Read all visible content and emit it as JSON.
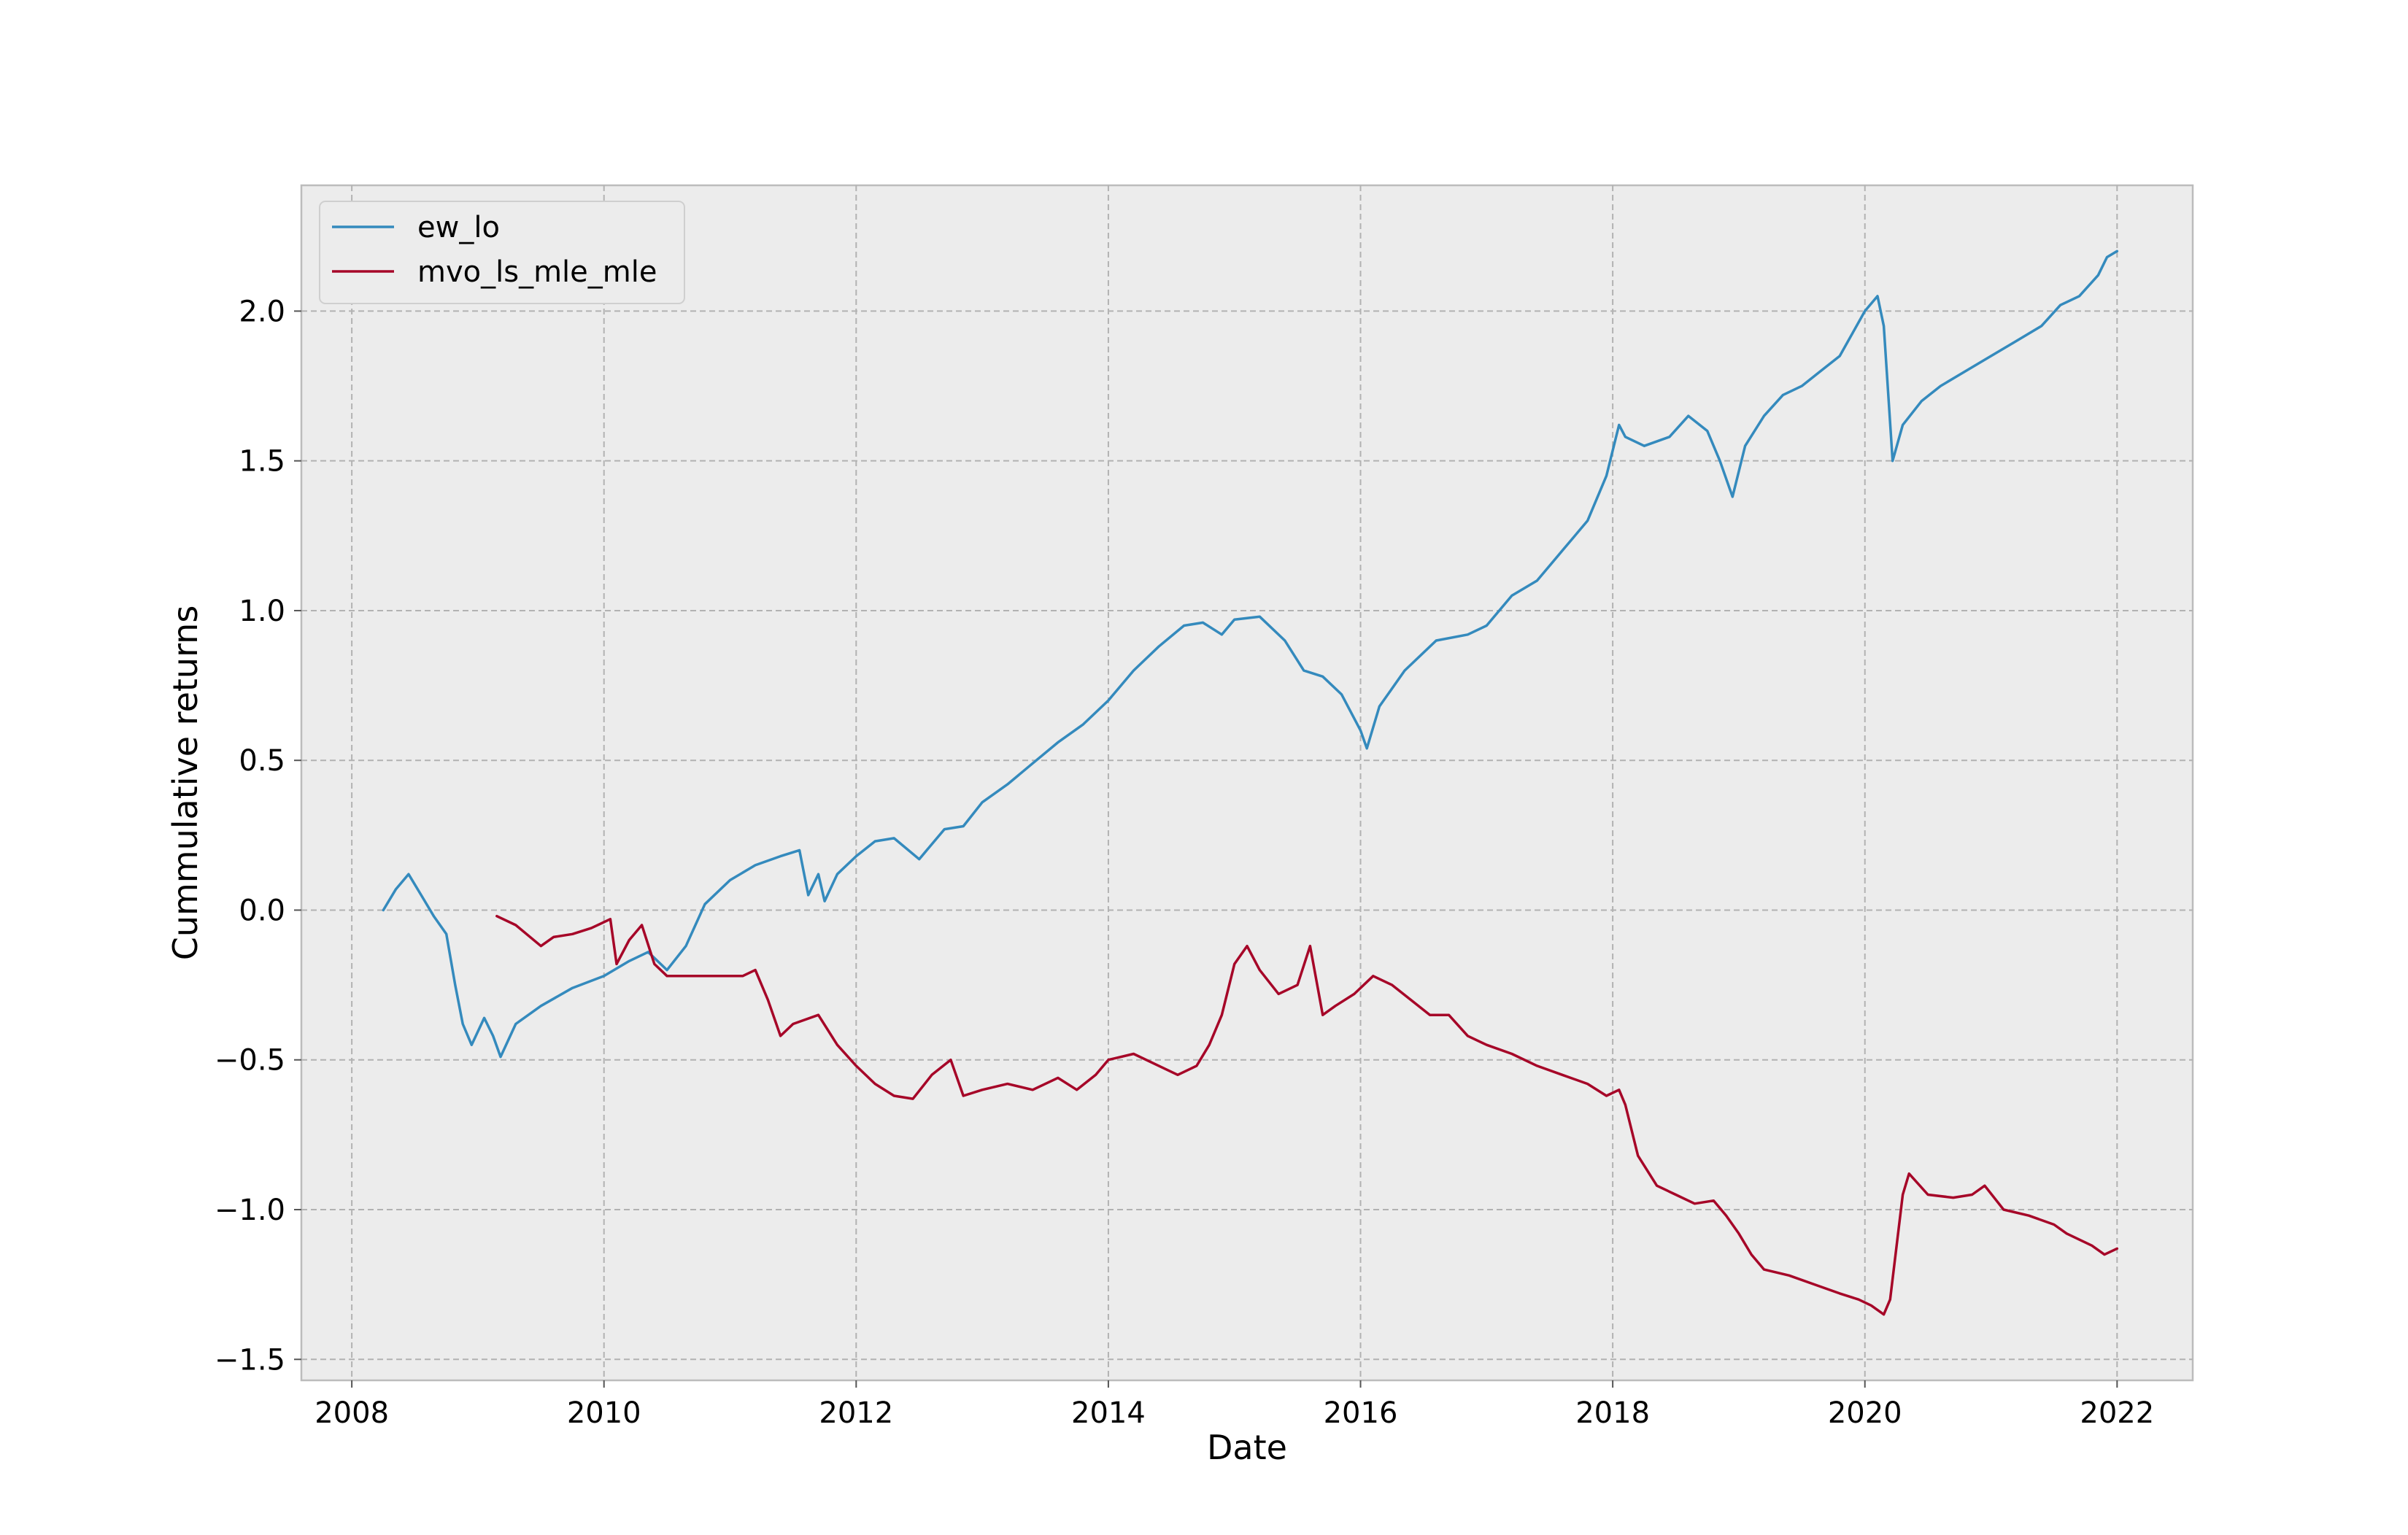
{
  "chart_data": {
    "type": "line",
    "title": "",
    "xlabel": "Date",
    "ylabel": "Cummulative returns",
    "xlim": [
      2007.6,
      2022.6
    ],
    "ylim": [
      -1.57,
      2.42
    ],
    "x_ticks": [
      2008,
      2010,
      2012,
      2014,
      2016,
      2018,
      2020,
      2022
    ],
    "x_tick_labels": [
      "2008",
      "2010",
      "2012",
      "2014",
      "2016",
      "2018",
      "2020",
      "2022"
    ],
    "y_ticks": [
      -1.5,
      -1.0,
      -0.5,
      0.0,
      0.5,
      1.0,
      1.5,
      2.0
    ],
    "y_tick_labels": [
      "−1.5",
      "−1.0",
      "−0.5",
      "0.0",
      "0.5",
      "1.0",
      "1.5",
      "2.0"
    ],
    "grid": true,
    "legend_position": "top-left",
    "background_color": "#ececec",
    "series": [
      {
        "name": "ew_lo",
        "color": "#348abd",
        "x": [
          2008.25,
          2008.35,
          2008.45,
          2008.55,
          2008.65,
          2008.75,
          2008.82,
          2008.88,
          2008.95,
          2009.05,
          2009.12,
          2009.18,
          2009.3,
          2009.5,
          2009.75,
          2010.0,
          2010.2,
          2010.35,
          2010.5,
          2010.65,
          2010.8,
          2011.0,
          2011.2,
          2011.4,
          2011.55,
          2011.62,
          2011.7,
          2011.75,
          2011.85,
          2012.0,
          2012.15,
          2012.3,
          2012.5,
          2012.7,
          2012.85,
          2013.0,
          2013.2,
          2013.4,
          2013.6,
          2013.8,
          2014.0,
          2014.2,
          2014.4,
          2014.6,
          2014.75,
          2014.9,
          2015.0,
          2015.2,
          2015.4,
          2015.55,
          2015.7,
          2015.85,
          2016.0,
          2016.05,
          2016.15,
          2016.35,
          2016.6,
          2016.85,
          2017.0,
          2017.2,
          2017.4,
          2017.6,
          2017.8,
          2017.95,
          2018.05,
          2018.1,
          2018.25,
          2018.45,
          2018.6,
          2018.75,
          2018.85,
          2018.95,
          2019.05,
          2019.2,
          2019.35,
          2019.5,
          2019.65,
          2019.8,
          2020.0,
          2020.1,
          2020.15,
          2020.22,
          2020.3,
          2020.45,
          2020.6,
          2020.8,
          2021.0,
          2021.2,
          2021.4,
          2021.55,
          2021.7,
          2021.85,
          2021.92,
          2022.0
        ],
        "values": [
          0.0,
          0.07,
          0.12,
          0.05,
          -0.02,
          -0.08,
          -0.25,
          -0.38,
          -0.45,
          -0.36,
          -0.42,
          -0.49,
          -0.38,
          -0.32,
          -0.26,
          -0.22,
          -0.17,
          -0.14,
          -0.2,
          -0.12,
          0.02,
          0.1,
          0.15,
          0.18,
          0.2,
          0.05,
          0.12,
          0.03,
          0.12,
          0.18,
          0.23,
          0.24,
          0.17,
          0.27,
          0.28,
          0.36,
          0.42,
          0.49,
          0.56,
          0.62,
          0.7,
          0.8,
          0.88,
          0.95,
          0.96,
          0.92,
          0.97,
          0.98,
          0.9,
          0.8,
          0.78,
          0.72,
          0.6,
          0.54,
          0.68,
          0.8,
          0.9,
          0.92,
          0.95,
          1.05,
          1.1,
          1.2,
          1.3,
          1.45,
          1.62,
          1.58,
          1.55,
          1.58,
          1.65,
          1.6,
          1.5,
          1.38,
          1.55,
          1.65,
          1.72,
          1.75,
          1.8,
          1.85,
          2.0,
          2.05,
          1.95,
          1.5,
          1.62,
          1.7,
          1.75,
          1.8,
          1.85,
          1.9,
          1.95,
          2.02,
          2.05,
          2.12,
          2.18,
          2.2
        ]
      },
      {
        "name": "mvo_ls_mle_mle",
        "color": "#a60628",
        "x": [
          2009.15,
          2009.3,
          2009.5,
          2009.6,
          2009.75,
          2009.9,
          2010.05,
          2010.1,
          2010.2,
          2010.3,
          2010.4,
          2010.5,
          2010.7,
          2010.9,
          2011.1,
          2011.2,
          2011.3,
          2011.4,
          2011.5,
          2011.7,
          2011.85,
          2012.0,
          2012.15,
          2012.3,
          2012.45,
          2012.6,
          2012.75,
          2012.85,
          2013.0,
          2013.2,
          2013.4,
          2013.6,
          2013.75,
          2013.9,
          2014.0,
          2014.2,
          2014.4,
          2014.55,
          2014.7,
          2014.8,
          2014.9,
          2015.0,
          2015.1,
          2015.2,
          2015.35,
          2015.5,
          2015.6,
          2015.7,
          2015.8,
          2015.95,
          2016.1,
          2016.25,
          2016.4,
          2016.55,
          2016.7,
          2016.85,
          2017.0,
          2017.2,
          2017.4,
          2017.6,
          2017.8,
          2017.95,
          2018.05,
          2018.1,
          2018.2,
          2018.35,
          2018.5,
          2018.65,
          2018.8,
          2018.9,
          2019.0,
          2019.1,
          2019.2,
          2019.4,
          2019.6,
          2019.8,
          2019.95,
          2020.05,
          2020.15,
          2020.2,
          2020.3,
          2020.35,
          2020.5,
          2020.7,
          2020.85,
          2020.95,
          2021.1,
          2021.3,
          2021.5,
          2021.6,
          2021.7,
          2021.8,
          2021.9,
          2022.0
        ],
        "values": [
          -0.02,
          -0.05,
          -0.12,
          -0.09,
          -0.08,
          -0.06,
          -0.03,
          -0.18,
          -0.1,
          -0.05,
          -0.18,
          -0.22,
          -0.22,
          -0.22,
          -0.22,
          -0.2,
          -0.3,
          -0.42,
          -0.38,
          -0.35,
          -0.45,
          -0.52,
          -0.58,
          -0.62,
          -0.63,
          -0.55,
          -0.5,
          -0.62,
          -0.6,
          -0.58,
          -0.6,
          -0.56,
          -0.6,
          -0.55,
          -0.5,
          -0.48,
          -0.52,
          -0.55,
          -0.52,
          -0.45,
          -0.35,
          -0.18,
          -0.12,
          -0.2,
          -0.28,
          -0.25,
          -0.12,
          -0.35,
          -0.32,
          -0.28,
          -0.22,
          -0.25,
          -0.3,
          -0.35,
          -0.35,
          -0.42,
          -0.45,
          -0.48,
          -0.52,
          -0.55,
          -0.58,
          -0.62,
          -0.6,
          -0.65,
          -0.82,
          -0.92,
          -0.95,
          -0.98,
          -0.97,
          -1.02,
          -1.08,
          -1.15,
          -1.2,
          -1.22,
          -1.25,
          -1.28,
          -1.3,
          -1.32,
          -1.35,
          -1.3,
          -0.95,
          -0.88,
          -0.95,
          -0.96,
          -0.95,
          -0.92,
          -1.0,
          -1.02,
          -1.05,
          -1.08,
          -1.1,
          -1.12,
          -1.15,
          -1.13
        ]
      }
    ]
  }
}
